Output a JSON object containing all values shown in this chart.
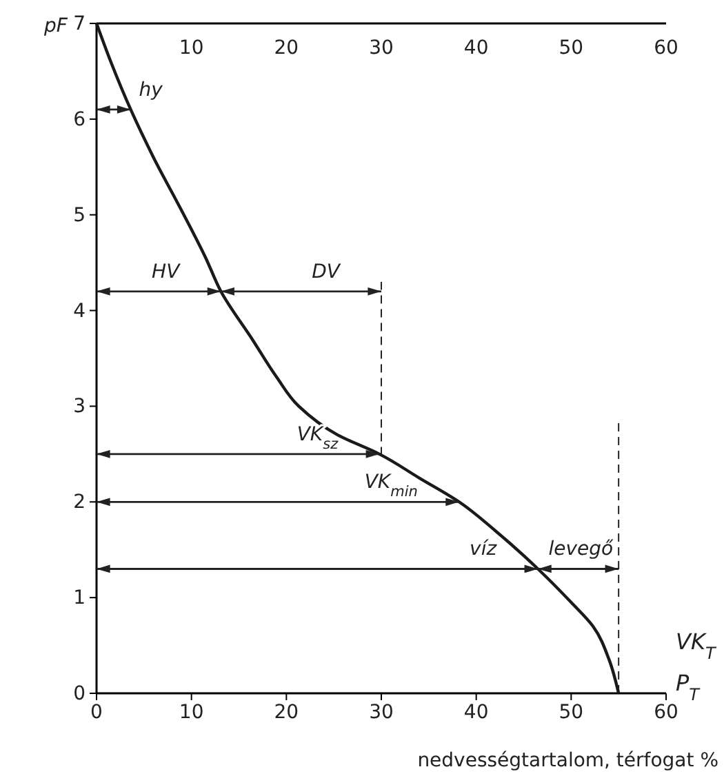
{
  "chart_data": {
    "type": "line",
    "xlabel": "nedvességtartalom, térfogat %",
    "ylabel": "pF",
    "series": [
      {
        "color": "#1a1a1a",
        "x": [
          0,
          1.5,
          3.6,
          6,
          9.2,
          11.5,
          13.1,
          16.4,
          19,
          21.3,
          25.4,
          29.8,
          34,
          38.2,
          42,
          46.5,
          50,
          52.3,
          54,
          55
        ],
        "values": [
          7,
          6.6,
          6.1,
          5.6,
          5,
          4.55,
          4.2,
          3.7,
          3.3,
          3,
          2.7,
          2.5,
          2.25,
          2,
          1.7,
          1.3,
          0.95,
          0.7,
          0.35,
          0
        ]
      }
    ],
    "xlim": [
      0,
      60
    ],
    "xticks": [
      0,
      10,
      20,
      30,
      40,
      50,
      60
    ],
    "x2lim": [
      0,
      60
    ],
    "x2ticks": [
      10,
      20,
      30,
      40,
      50,
      60
    ],
    "ylim": [
      0,
      7
    ],
    "yticks": [
      0,
      1,
      2,
      3,
      4,
      5,
      6,
      7
    ],
    "grid": false,
    "marker": "none",
    "line_style": "solid",
    "ref_lines": [
      {
        "axis": "x",
        "value": 30,
        "line_style": "dashed"
      },
      {
        "axis": "x",
        "value": 55,
        "line_style": "dashed"
      }
    ],
    "annotations": [
      {
        "text": "hy",
        "x": 3.6,
        "y": 6.1
      },
      {
        "text": "HV",
        "x": 13.1,
        "y": 4.2
      },
      {
        "text": "DV",
        "x": 30,
        "y": 4.2
      },
      {
        "text": "VK$_{sz}$",
        "x": 29.8,
        "y": 2.5
      },
      {
        "text": "VK$_{min}$",
        "x": 38.2,
        "y": 2
      },
      {
        "text": "víz",
        "x": 46.5,
        "y": 1.3
      },
      {
        "text": "levegő",
        "x": 55,
        "y": 1.3
      },
      {
        "text": "VK$_{T}$",
        "x": 55,
        "y": 0
      },
      {
        "text": "P$_{T}$",
        "x": 55,
        "y": 0
      }
    ]
  }
}
